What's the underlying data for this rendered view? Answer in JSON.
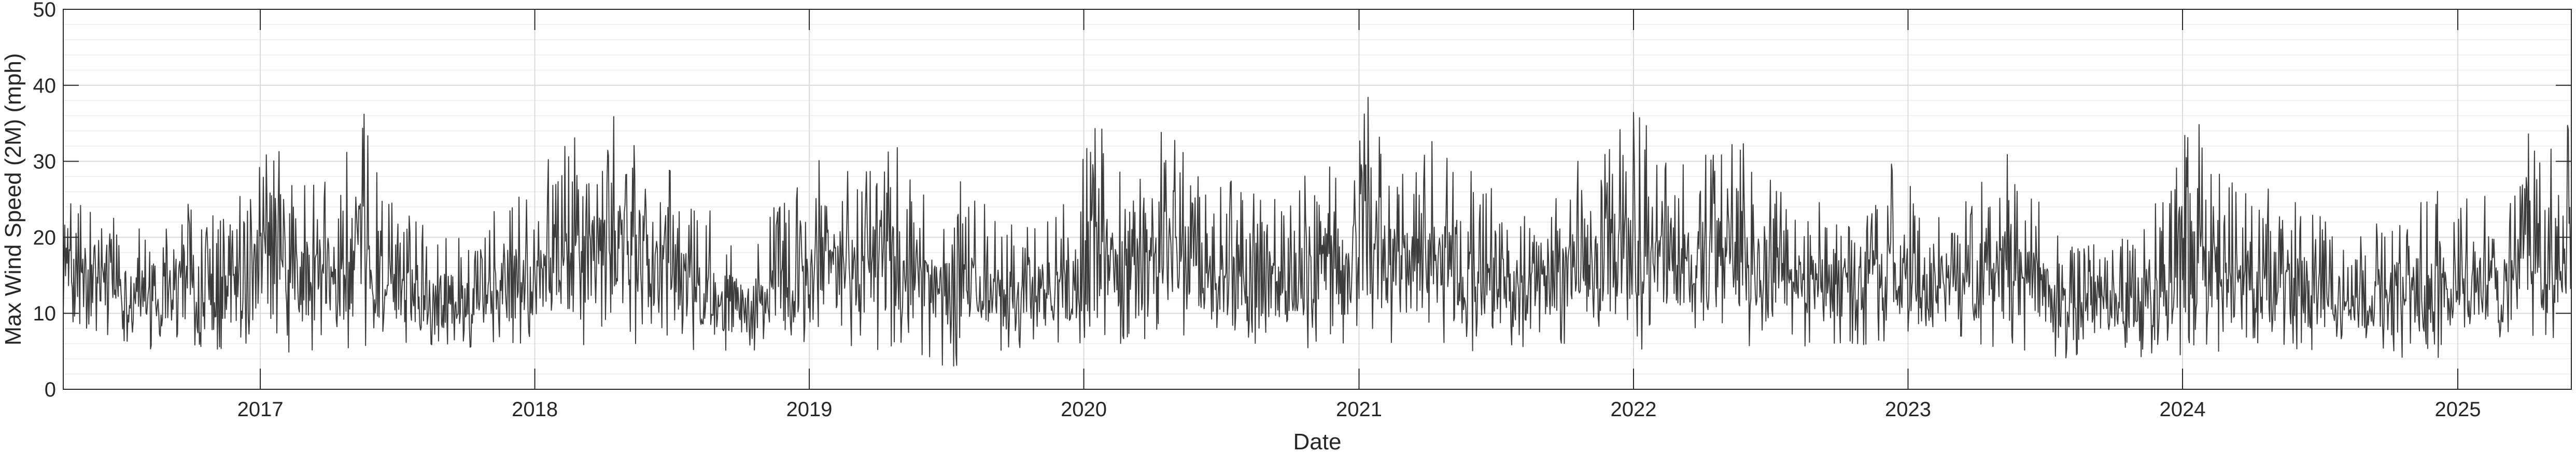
{
  "chart_data": {
    "type": "line",
    "title": "",
    "xlabel": "Date",
    "ylabel": "Max Wind Speed (2M) (mph)",
    "xlim": [
      "2016-04-14",
      "2025-06-01"
    ],
    "ylim": [
      0,
      50
    ],
    "x_ticks": [
      "2017",
      "2018",
      "2019",
      "2020",
      "2021",
      "2022",
      "2023",
      "2024",
      "2025"
    ],
    "y_ticks": [
      0,
      10,
      20,
      30,
      40,
      50
    ],
    "grid": true,
    "minor_grid_y": true,
    "legend": "none",
    "series": [
      {
        "x": [
          "2016-04-15",
          "2016-05-15",
          "2016-06-15",
          "2016-07-15",
          "2016-08-15",
          "2016-09-15",
          "2016-10-15",
          "2016-11-15",
          "2016-12-15",
          "2017-01-15",
          "2017-02-15",
          "2017-03-15",
          "2017-04-15",
          "2017-05-15",
          "2017-06-15",
          "2017-07-15",
          "2017-08-15",
          "2017-09-15",
          "2017-10-15",
          "2017-11-15",
          "2017-12-15",
          "2018-01-15",
          "2018-02-15",
          "2018-03-15",
          "2018-04-15",
          "2018-05-15",
          "2018-06-15",
          "2018-07-15",
          "2018-08-15",
          "2018-09-15",
          "2018-10-15",
          "2018-11-15",
          "2018-12-15",
          "2019-01-15",
          "2019-02-15",
          "2019-03-15",
          "2019-04-15",
          "2019-05-15",
          "2019-06-15",
          "2019-07-15",
          "2019-08-15",
          "2019-09-15",
          "2019-10-15",
          "2019-11-15",
          "2019-12-15",
          "2020-01-15",
          "2020-02-15",
          "2020-03-15",
          "2020-04-15",
          "2020-05-15",
          "2020-06-15",
          "2020-07-15",
          "2020-08-15",
          "2020-09-15",
          "2020-10-15",
          "2020-11-15",
          "2020-12-15",
          "2021-01-15",
          "2021-02-15",
          "2021-03-15",
          "2021-04-15",
          "2021-05-15",
          "2021-06-15",
          "2021-07-15",
          "2021-08-15",
          "2021-09-15",
          "2021-10-15",
          "2021-11-15",
          "2021-12-15",
          "2022-01-15",
          "2022-02-15",
          "2022-03-15",
          "2022-04-15",
          "2022-05-15",
          "2022-06-15",
          "2022-07-15",
          "2022-08-15",
          "2022-09-15",
          "2022-10-15",
          "2022-11-15",
          "2022-12-15",
          "2023-01-15",
          "2023-02-15",
          "2023-03-15",
          "2023-04-15",
          "2023-05-15",
          "2023-06-15",
          "2023-07-15",
          "2023-08-15",
          "2023-09-15",
          "2023-10-15",
          "2023-11-15",
          "2023-12-15",
          "2024-01-15",
          "2024-02-15",
          "2024-03-15",
          "2024-04-15",
          "2024-05-15",
          "2024-06-15",
          "2024-07-15",
          "2024-08-15",
          "2024-09-15",
          "2024-10-15",
          "2024-11-15",
          "2024-12-15",
          "2025-01-15",
          "2025-02-15",
          "2025-03-15",
          "2025-04-15",
          "2025-05-15"
        ],
        "y_min": [
          7,
          6,
          7,
          6,
          5,
          6,
          5,
          5,
          5,
          6,
          4,
          5,
          5,
          5,
          6,
          6,
          5,
          6,
          5,
          6,
          6,
          6,
          5,
          6,
          7,
          6,
          6,
          5,
          5,
          5,
          4,
          5,
          6,
          6,
          6,
          5,
          4,
          5,
          4,
          1,
          5,
          5,
          5,
          6,
          6,
          6,
          6,
          6,
          7,
          7,
          6,
          6,
          5,
          6,
          5,
          6,
          6,
          6,
          5,
          6,
          5,
          5,
          5,
          5,
          5,
          6,
          5,
          6,
          6,
          5,
          6,
          6,
          6,
          6,
          5,
          5,
          5,
          6,
          5,
          6,
          6,
          5,
          5,
          5,
          5,
          5,
          5,
          4,
          4,
          5,
          5,
          4,
          4,
          4,
          5,
          5,
          5,
          5,
          5,
          5,
          5,
          5,
          4,
          4,
          4,
          5,
          5,
          6,
          5,
          5
        ],
        "y_max": [
          27,
          25,
          24,
          22,
          20,
          27,
          23,
          26,
          27,
          34,
          30,
          28,
          28,
          38,
          25,
          24,
          22,
          21,
          22,
          24,
          26,
          30,
          37,
          34,
          36,
          36,
          30,
          28,
          24,
          22,
          21,
          24,
          27,
          31,
          31,
          34,
          36,
          28,
          26,
          28,
          25,
          23,
          22,
          24,
          25,
          36,
          31,
          30,
          35,
          32,
          30,
          29,
          27,
          26,
          28,
          30,
          31,
          41,
          33,
          30,
          34,
          30,
          28,
          25,
          23,
          26,
          30,
          30,
          35,
          39,
          31,
          32,
          34,
          34,
          30,
          27,
          25,
          26,
          25,
          28,
          30,
          26,
          24,
          25,
          30,
          31,
          28,
          22,
          19,
          22,
          20,
          24,
          27,
          37,
          29,
          27,
          27,
          27,
          24,
          23,
          20,
          22,
          23,
          25,
          27,
          25,
          26,
          27,
          38,
          36
        ]
      }
    ]
  }
}
